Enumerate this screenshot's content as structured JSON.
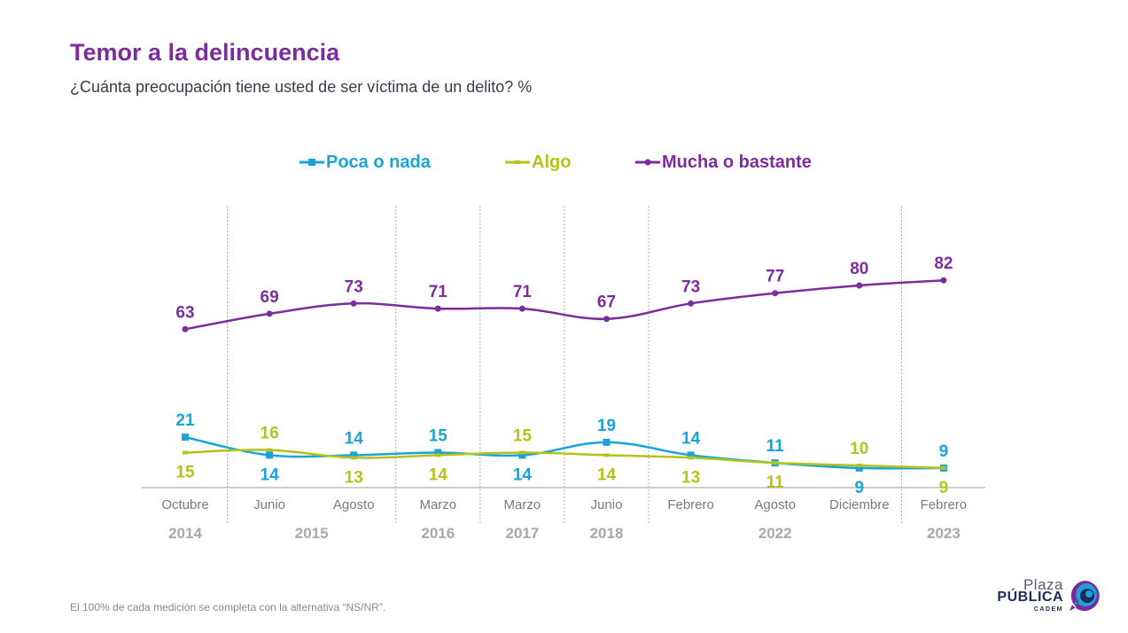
{
  "header": {
    "title": "Temor a la delincuencia",
    "subtitle": "¿Cuánta preocupación tiene usted de ser víctima de un delito? %"
  },
  "footnote": "El 100% de cada medición se completa con la alternativa “NS/NR”.",
  "logo": {
    "line1": "Plaza",
    "line2": "PÚBLICA",
    "line3": "CADEM"
  },
  "colors": {
    "poca": "#1aa3d9",
    "algo": "#b5c21a",
    "mucha": "#7b2d9e",
    "axis": "#bdbdbd",
    "labels": "#7a7a7a"
  },
  "chart_data": {
    "type": "line",
    "title": "Temor a la delincuencia",
    "subtitle": "¿Cuánta preocupación tiene usted de ser víctima de un delito? %",
    "categories": [
      "Octubre",
      "Junio",
      "Agosto",
      "Marzo",
      "Marzo",
      "Junio",
      "Febrero",
      "Agosto",
      "Diciembre",
      "Febrero"
    ],
    "years": [
      "2014",
      "2015",
      "2016",
      "2017",
      "2018",
      "2022",
      "2023"
    ],
    "legend_position": "top-center",
    "grid": false,
    "ylim": [
      0,
      100
    ],
    "series": [
      {
        "name": "Poca o nada",
        "key": "poca",
        "marker": "square",
        "values": [
          21,
          14,
          14,
          15,
          14,
          19,
          14,
          11,
          9,
          9
        ]
      },
      {
        "name": "Algo",
        "key": "algo",
        "marker": "dash",
        "values": [
          15,
          16,
          13,
          14,
          15,
          14,
          13,
          11,
          10,
          9
        ]
      },
      {
        "name": "Mucha o bastante",
        "key": "mucha",
        "marker": "circle",
        "values": [
          63,
          69,
          73,
          71,
          71,
          67,
          73,
          77,
          80,
          82
        ]
      }
    ]
  }
}
